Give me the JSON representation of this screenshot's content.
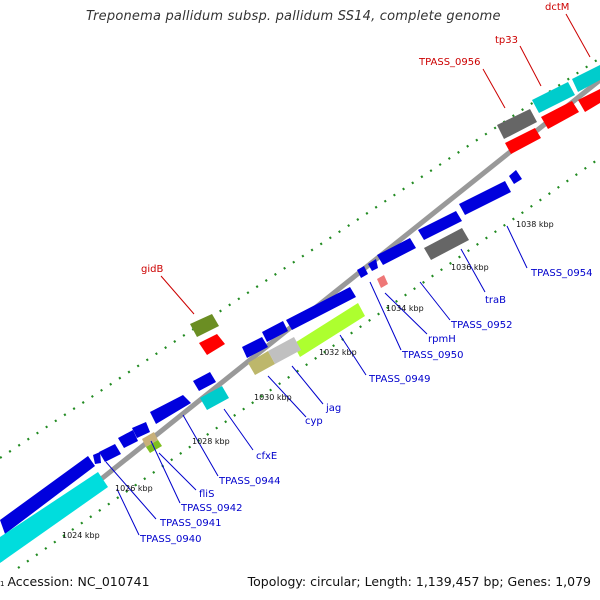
{
  "title": "Treponema pallidum subsp. pallidum SS14, complete genome",
  "footer": {
    "index": "1",
    "accession": "Accession: NC_010741",
    "summary": "Topology: circular; Length: 1,139,457 bp; Genes: 1,079"
  },
  "colors": {
    "label_blue": "#0000cc",
    "label_red": "#cc0000",
    "gene_blue": "#0000dd",
    "gene_cyan": "#00cccc",
    "gene_red": "#ff0000",
    "gene_olive": "#6b8e23",
    "gene_lime": "#adff2f",
    "gene_gray": "#666666",
    "backbone": "#999999",
    "tick_green": "#228b22"
  },
  "scale_labels": [
    "1024 kbp",
    "1026 kbp",
    "1028 kbp",
    "1030 kbp",
    "1032 kbp",
    "1034 kbp",
    "1036 kbp",
    "1038 kbp"
  ],
  "gene_labels": [
    {
      "text": "gidB",
      "color": "red"
    },
    {
      "text": "TPASS_0956",
      "color": "red"
    },
    {
      "text": "tp33",
      "color": "red"
    },
    {
      "text": "dctM",
      "color": "red"
    },
    {
      "text": "TPASS_0954",
      "color": "blue"
    },
    {
      "text": "traB",
      "color": "blue"
    },
    {
      "text": "TPASS_0952",
      "color": "blue"
    },
    {
      "text": "rpmH",
      "color": "blue"
    },
    {
      "text": "TPASS_0950",
      "color": "blue"
    },
    {
      "text": "TPASS_0949",
      "color": "blue"
    },
    {
      "text": "jag",
      "color": "blue"
    },
    {
      "text": "cyp",
      "color": "blue"
    },
    {
      "text": "cfxE",
      "color": "blue"
    },
    {
      "text": "TPASS_0944",
      "color": "blue"
    },
    {
      "text": "TPASS_0942",
      "color": "blue"
    },
    {
      "text": "fliS",
      "color": "blue"
    },
    {
      "text": "TPASS_0941",
      "color": "blue"
    },
    {
      "text": "TPASS_0940",
      "color": "blue"
    }
  ],
  "features": [
    {
      "name": "feature-olive-upper",
      "color": "olive"
    },
    {
      "name": "feature-red-small",
      "color": "red"
    },
    {
      "name": "feature-gray-upper",
      "color": "gray"
    },
    {
      "name": "feature-red-upper-1",
      "color": "red"
    },
    {
      "name": "feature-red-upper-2",
      "color": "red"
    },
    {
      "name": "feature-cyan-upper-1",
      "color": "cyan"
    },
    {
      "name": "feature-cyan-upper-2",
      "color": "cyan"
    },
    {
      "name": "feature-blue-strand",
      "color": "blue"
    },
    {
      "name": "feature-gray-lower",
      "color": "gray"
    },
    {
      "name": "feature-pink",
      "color": "red"
    },
    {
      "name": "feature-lime",
      "color": "lime"
    },
    {
      "name": "feature-khaki",
      "color": "olive"
    },
    {
      "name": "feature-silver",
      "color": "gray"
    },
    {
      "name": "feature-cyan-mid",
      "color": "cyan"
    },
    {
      "name": "feature-cyan-lower",
      "color": "cyan"
    },
    {
      "name": "feature-lime-small",
      "color": "lime"
    }
  ]
}
